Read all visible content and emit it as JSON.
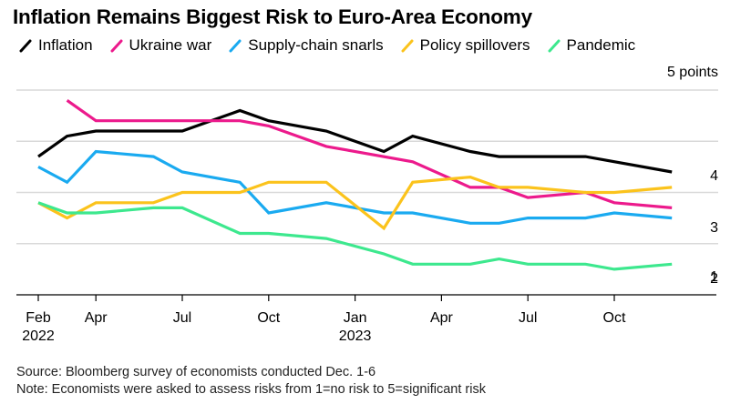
{
  "chart_data": {
    "type": "line",
    "title": "Inflation Remains Biggest Risk to Euro-Area Economy",
    "unit_label": "5 points",
    "xlabel": "",
    "ylabel": "",
    "ylim": [
      1,
      5
    ],
    "y_ticks": [
      1,
      2,
      3,
      4,
      5
    ],
    "y_tick_labels": [
      "1",
      "2",
      "3",
      "4",
      ""
    ],
    "grid": true,
    "legend_position": "top-left",
    "x_ticks": [
      {
        "month_index": 0,
        "label": "Feb",
        "sublabel": "2022"
      },
      {
        "month_index": 2,
        "label": "Apr",
        "sublabel": ""
      },
      {
        "month_index": 5,
        "label": "Jul",
        "sublabel": ""
      },
      {
        "month_index": 8,
        "label": "Oct",
        "sublabel": ""
      },
      {
        "month_index": 11,
        "label": "Jan",
        "sublabel": "2023"
      },
      {
        "month_index": 14,
        "label": "Apr",
        "sublabel": ""
      },
      {
        "month_index": 17,
        "label": "Jul",
        "sublabel": ""
      },
      {
        "month_index": 20,
        "label": "Oct",
        "sublabel": ""
      }
    ],
    "x_range_month_index": [
      0,
      22
    ],
    "series": [
      {
        "name": "Inflation",
        "color": "#000000",
        "points": [
          [
            0,
            3.7
          ],
          [
            1,
            4.1
          ],
          [
            2,
            4.2
          ],
          [
            5,
            4.2
          ],
          [
            7,
            4.6
          ],
          [
            8,
            4.4
          ],
          [
            10,
            4.2
          ],
          [
            12,
            3.8
          ],
          [
            13,
            4.1
          ],
          [
            15,
            3.8
          ],
          [
            16,
            3.7
          ],
          [
            17,
            3.7
          ],
          [
            19,
            3.7
          ],
          [
            22,
            3.4
          ]
        ]
      },
      {
        "name": "Ukraine war",
        "color": "#ec1a8c",
        "points": [
          [
            1,
            4.8
          ],
          [
            2,
            4.4
          ],
          [
            7,
            4.4
          ],
          [
            8,
            4.3
          ],
          [
            10,
            3.9
          ],
          [
            13,
            3.6
          ],
          [
            15,
            3.1
          ],
          [
            16,
            3.1
          ],
          [
            17,
            2.9
          ],
          [
            19,
            3.0
          ],
          [
            20,
            2.8
          ],
          [
            22,
            2.7
          ]
        ]
      },
      {
        "name": "Supply-chain snarls",
        "color": "#1aaaf0",
        "points": [
          [
            0,
            3.5
          ],
          [
            1,
            3.2
          ],
          [
            2,
            3.8
          ],
          [
            4,
            3.7
          ],
          [
            5,
            3.4
          ],
          [
            7,
            3.2
          ],
          [
            8,
            2.6
          ],
          [
            10,
            2.8
          ],
          [
            12,
            2.6
          ],
          [
            13,
            2.6
          ],
          [
            15,
            2.4
          ],
          [
            16,
            2.4
          ],
          [
            17,
            2.5
          ],
          [
            19,
            2.5
          ],
          [
            20,
            2.6
          ],
          [
            22,
            2.5
          ]
        ]
      },
      {
        "name": "Policy spillovers",
        "color": "#fbc31c",
        "points": [
          [
            0,
            2.8
          ],
          [
            1,
            2.5
          ],
          [
            2,
            2.8
          ],
          [
            4,
            2.8
          ],
          [
            5,
            3.0
          ],
          [
            7,
            3.0
          ],
          [
            8,
            3.2
          ],
          [
            10,
            3.2
          ],
          [
            12,
            2.3
          ],
          [
            13,
            3.2
          ],
          [
            15,
            3.3
          ],
          [
            16,
            3.1
          ],
          [
            17,
            3.1
          ],
          [
            19,
            3.0
          ],
          [
            20,
            3.0
          ],
          [
            22,
            3.1
          ]
        ]
      },
      {
        "name": "Pandemic",
        "color": "#3de88e",
        "points": [
          [
            0,
            2.8
          ],
          [
            1,
            2.6
          ],
          [
            2,
            2.6
          ],
          [
            4,
            2.7
          ],
          [
            5,
            2.7
          ],
          [
            7,
            2.2
          ],
          [
            8,
            2.2
          ],
          [
            10,
            2.1
          ],
          [
            12,
            1.8
          ],
          [
            13,
            1.6
          ],
          [
            15,
            1.6
          ],
          [
            16,
            1.7
          ],
          [
            17,
            1.6
          ],
          [
            19,
            1.6
          ],
          [
            20,
            1.5
          ],
          [
            22,
            1.6
          ]
        ]
      }
    ]
  },
  "footer": {
    "source": "Source: Bloomberg survey of economists conducted Dec. 1-6",
    "note": "Note: Economists were asked to assess risks from 1=no risk to 5=significant risk"
  }
}
